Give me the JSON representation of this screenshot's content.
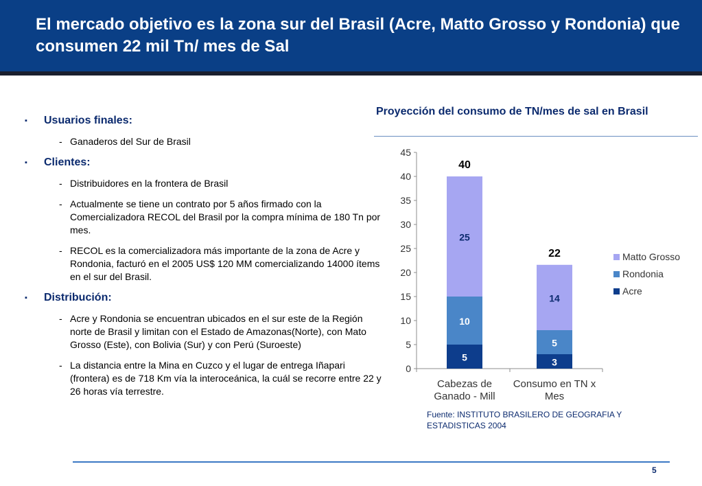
{
  "slide": {
    "title": "El mercado objetivo es la zona sur del Brasil (Acre, Matto Grosso y Rondonia) que consumen 22 mil Tn/ mes de Sal",
    "page_number": "5",
    "source": "Fuente: INSTITUTO BRASILERO DE GEOGRAFIA Y ESTADISTICAS 2004",
    "bullet_marker": "▪",
    "dash": "-"
  },
  "sections": [
    {
      "heading": "Usuarios finales:",
      "items": [
        "Ganaderos del Sur de Brasil"
      ]
    },
    {
      "heading": "Clientes:",
      "items": [
        "Distribuidores en la frontera de Brasil",
        "Actualmente se tiene un contrato por 5 años firmado con la Comercializadora RECOL del Brasil por la compra mínima de 180 Tn por mes.",
        "RECOL es la comercializadora más importante de la zona de Acre y Rondonia, facturó en el 2005 US$ 120 MM comercializando 14000 ítems en el sur del Brasil."
      ]
    },
    {
      "heading": "Distribución:",
      "items": [
        "Acre y Rondonia se encuentran ubicados en el  sur este de la Región norte de Brasil y limitan con el Estado de Amazonas(Norte), con Mato Grosso (Este), con Bolivia (Sur) y con Perú (Suroeste)",
        "La distancia entre la Mina en Cuzco y el lugar de entrega Iñapari (frontera) es de 718 Km vía la interoceánica, la cuál se recorre entre 22 y 26 horas vía terrestre."
      ]
    }
  ],
  "chart_data": {
    "type": "bar",
    "stacked": true,
    "title": "Proyección del consumo de TN/mes de sal en Brasil",
    "categories": [
      "Cabezas de Ganado - Mill",
      "Consumo en TN x Mes"
    ],
    "category_lines": [
      [
        "Cabezas de",
        "Ganado - Mill"
      ],
      [
        "Consumo en TN x",
        "Mes"
      ]
    ],
    "series": [
      {
        "name": "Acre",
        "values": [
          5,
          3
        ],
        "labels": [
          "5",
          "3"
        ],
        "color": "#0d3d8c",
        "label_color": "#ffffff"
      },
      {
        "name": "Rondonia",
        "values": [
          10,
          5
        ],
        "labels": [
          "10",
          "5"
        ],
        "color": "#4a86c8",
        "label_color": "#ffffff"
      },
      {
        "name": "Matto Grosso",
        "values": [
          25,
          13.6
        ],
        "labels": [
          "25",
          "14"
        ],
        "color": "#a6a6f2",
        "label_color": "#0b2a6e"
      }
    ],
    "totals": [
      "40",
      "22"
    ],
    "ylim": [
      0,
      45
    ],
    "yticks": [
      0,
      5,
      10,
      15,
      20,
      25,
      30,
      35,
      40,
      45
    ],
    "grid": false,
    "legend_position": "right",
    "legend_order": [
      "Matto Grosso",
      "Rondonia",
      "Acre"
    ]
  }
}
